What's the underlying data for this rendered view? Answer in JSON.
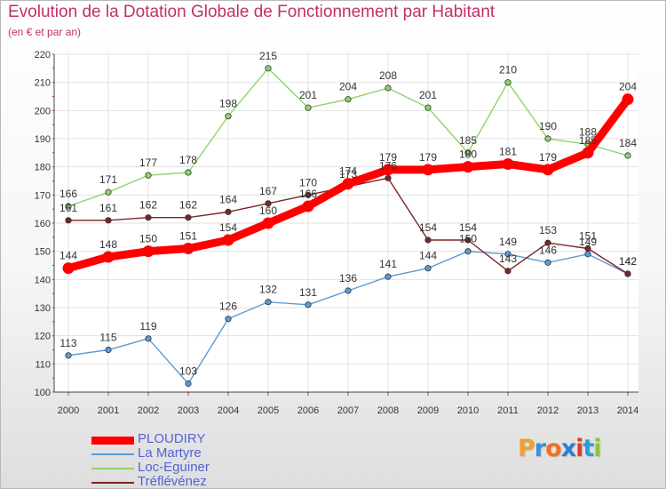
{
  "title": "Evolution de la Dotation Globale de Fonctionnement par Habitant",
  "subtitle": "(en € et par an)",
  "brand": {
    "letters": [
      "P",
      "r",
      "o",
      "x",
      "i",
      "t",
      "i"
    ],
    "colors": [
      "#f0a030",
      "#3b8fd6",
      "#f07020",
      "#2a7fd0",
      "#e03a2a",
      "#2aa0d8",
      "#8cc63e"
    ]
  },
  "chart_data": {
    "type": "line",
    "title": "Evolution de la Dotation Globale de Fonctionnement par Habitant",
    "ylabel": "(en € et par an)",
    "xlabel": "",
    "x": [
      "2000",
      "2001",
      "2002",
      "2003",
      "2004",
      "2005",
      "2006",
      "2007",
      "2008",
      "2009",
      "2010",
      "2011",
      "2012",
      "2013",
      "2014"
    ],
    "ylim": [
      100,
      220
    ],
    "yticks": [
      100,
      110,
      120,
      130,
      140,
      150,
      160,
      170,
      180,
      190,
      200,
      210,
      220
    ],
    "grid": true,
    "legend": "bottom-left",
    "series": [
      {
        "name": "PLOUDIRY",
        "color": "#ff0000",
        "values": [
          144,
          148,
          150,
          151,
          154,
          160,
          166,
          174,
          179,
          179,
          180,
          181,
          179,
          185,
          204
        ],
        "labels": [
          "144",
          "148",
          "150",
          "151",
          "154",
          "160",
          "166",
          "174",
          "179",
          "179",
          "180",
          "181",
          "179",
          "185",
          "204"
        ]
      },
      {
        "name": "La Martyre",
        "color": "#5b9bd5",
        "values": [
          113,
          115,
          119,
          103,
          126,
          132,
          131,
          136,
          141,
          144,
          150,
          149,
          146,
          149,
          142
        ],
        "labels": [
          "113",
          "115",
          "119",
          "103",
          "126",
          "132",
          "131",
          "136",
          "141",
          "144",
          "150",
          "149",
          "146",
          "149",
          "142"
        ]
      },
      {
        "name": "Loc-Eguiner",
        "color": "#8fd46a",
        "values": [
          166,
          171,
          177,
          178,
          198,
          215,
          201,
          204,
          208,
          201,
          185,
          210,
          190,
          188,
          184
        ],
        "labels": [
          "166",
          "171",
          "177",
          "178",
          "198",
          "215",
          "201",
          "204",
          "208",
          "201",
          "185",
          "210",
          "190",
          "188",
          "184"
        ]
      },
      {
        "name": "Tréflévénez",
        "color": "#7a2626",
        "values": [
          161,
          161,
          162,
          162,
          164,
          167,
          170,
          173,
          176,
          154,
          154,
          143,
          153,
          151,
          142
        ],
        "labels": [
          "161",
          "161",
          "162",
          "162",
          "164",
          "167",
          "170",
          "173",
          "176",
          "154",
          "154",
          "143",
          "153",
          "151",
          "142"
        ]
      }
    ]
  }
}
